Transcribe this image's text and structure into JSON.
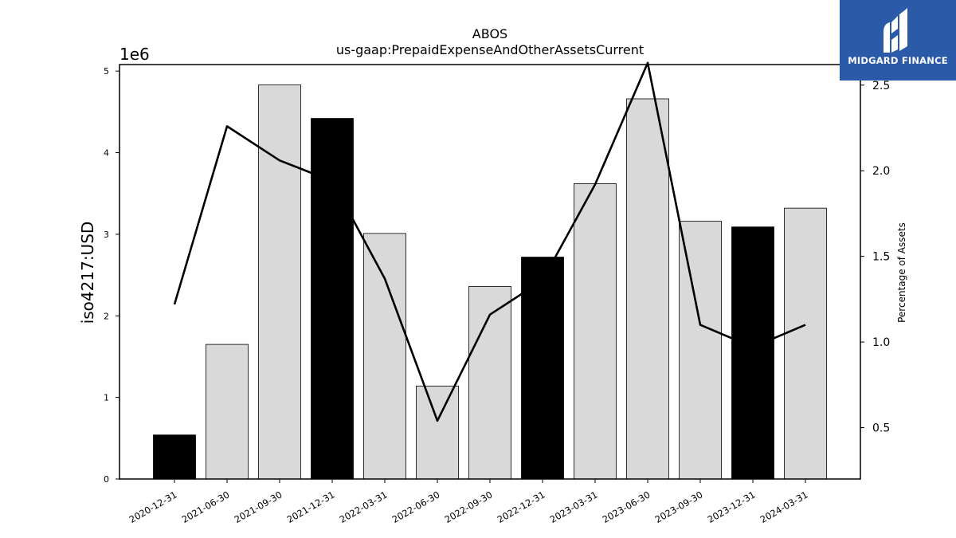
{
  "chart_data": {
    "type": "bar",
    "title": "ABOS",
    "subtitle": "us-gaap:PrepaidExpenseAndOtherAssetsCurrent",
    "ylabel": "iso4217:USD",
    "y_offset_label": "1e6",
    "y2label": "Percentage of Assets",
    "categories": [
      "2020-12-31",
      "2021-06-30",
      "2021-09-30",
      "2021-12-31",
      "2022-03-31",
      "2022-06-30",
      "2022-09-30",
      "2022-12-31",
      "2023-03-31",
      "2023-06-30",
      "2023-09-30",
      "2023-12-31",
      "2024-03-31"
    ],
    "values": [
      540000,
      1650000,
      4830000,
      4420000,
      3010000,
      1140000,
      2360000,
      2720000,
      3620000,
      4660000,
      3160000,
      3090000,
      3320000
    ],
    "bar_colors": [
      "#000000",
      "#d9d9d9",
      "#d9d9d9",
      "#000000",
      "#d9d9d9",
      "#d9d9d9",
      "#d9d9d9",
      "#000000",
      "#d9d9d9",
      "#d9d9d9",
      "#d9d9d9",
      "#000000",
      "#d9d9d9"
    ],
    "line_values": [
      1.22,
      2.26,
      2.06,
      1.94,
      1.37,
      0.54,
      1.16,
      1.36,
      1.92,
      2.63,
      1.1,
      0.97,
      1.1
    ],
    "ylim": [
      0,
      5080000
    ],
    "y2lim": [
      0.2,
      2.62
    ],
    "yticks": [
      0,
      1000000,
      2000000,
      3000000,
      4000000,
      5000000
    ],
    "ytick_labels": [
      "0",
      "1",
      "2",
      "3",
      "4",
      "5"
    ],
    "y2ticks": [
      0.5,
      1.0,
      1.5,
      2.0,
      2.5
    ],
    "y2tick_labels": [
      "0.5",
      "1.0",
      "1.5",
      "2.0",
      "2.5"
    ],
    "grid": false,
    "line_color": "#000000"
  },
  "logo": {
    "text": "MIDGARD FINANCE",
    "icon": "midgard-logo-icon"
  }
}
